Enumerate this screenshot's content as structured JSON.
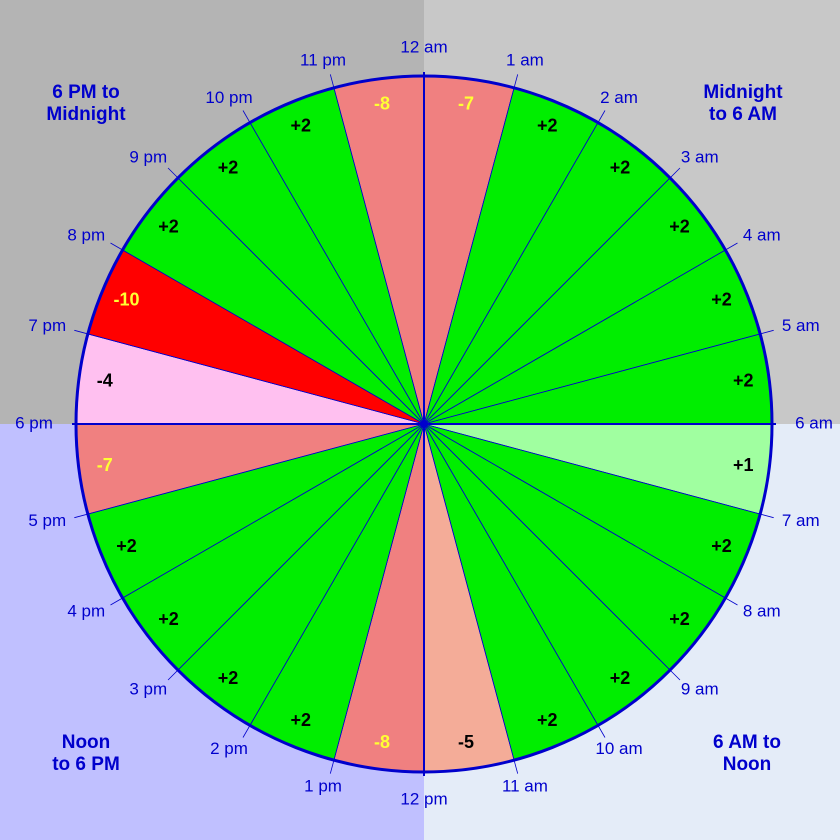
{
  "quadrants": [
    {
      "lines": [
        "Midnight",
        "to 6 AM"
      ],
      "color": "#c8c8c8"
    },
    {
      "lines": [
        "6 AM to",
        "Noon"
      ],
      "color": "#e4ecf8"
    },
    {
      "lines": [
        "Noon",
        "to 6 PM"
      ],
      "color": "#c0c0ff"
    },
    {
      "lines": [
        "6 PM to",
        "Midnight"
      ],
      "color": "#b4b4b4"
    }
  ],
  "hours": [
    "12 am",
    "1 am",
    "2 am",
    "3 am",
    "4 am",
    "5 am",
    "6 am",
    "7 am",
    "8 am",
    "9 am",
    "10 am",
    "11 am",
    "12 pm",
    "1 pm",
    "2 pm",
    "3 pm",
    "4 pm",
    "5 pm",
    "6 pm",
    "7 pm",
    "8 pm",
    "9 pm",
    "10 pm",
    "11 pm"
  ],
  "segments": [
    {
      "label": "-7",
      "color": "#f08080",
      "text_color": "#ffff33"
    },
    {
      "label": "+2",
      "color": "#00ee00",
      "text_color": "#000000"
    },
    {
      "label": "+2",
      "color": "#00ee00",
      "text_color": "#000000"
    },
    {
      "label": "+2",
      "color": "#00ee00",
      "text_color": "#000000"
    },
    {
      "label": "+2",
      "color": "#00ee00",
      "text_color": "#000000"
    },
    {
      "label": "+2",
      "color": "#00ee00",
      "text_color": "#000000"
    },
    {
      "label": "+1",
      "color": "#a0ffa0",
      "text_color": "#000000"
    },
    {
      "label": "+2",
      "color": "#00ee00",
      "text_color": "#000000"
    },
    {
      "label": "+2",
      "color": "#00ee00",
      "text_color": "#000000"
    },
    {
      "label": "+2",
      "color": "#00ee00",
      "text_color": "#000000"
    },
    {
      "label": "+2",
      "color": "#00ee00",
      "text_color": "#000000"
    },
    {
      "label": "-5",
      "color": "#f4ac98",
      "text_color": "#000000"
    },
    {
      "label": "-8",
      "color": "#f08080",
      "text_color": "#ffff33"
    },
    {
      "label": "+2",
      "color": "#00ee00",
      "text_color": "#000000"
    },
    {
      "label": "+2",
      "color": "#00ee00",
      "text_color": "#000000"
    },
    {
      "label": "+2",
      "color": "#00ee00",
      "text_color": "#000000"
    },
    {
      "label": "+2",
      "color": "#00ee00",
      "text_color": "#000000"
    },
    {
      "label": "-7",
      "color": "#f08080",
      "text_color": "#ffff33"
    },
    {
      "label": "-4",
      "color": "#ffc0f0",
      "text_color": "#000000"
    },
    {
      "label": "-10",
      "color": "#ff0000",
      "text_color": "#ffff33"
    },
    {
      "label": "+2",
      "color": "#00ee00",
      "text_color": "#000000"
    },
    {
      "label": "+2",
      "color": "#00ee00",
      "text_color": "#000000"
    },
    {
      "label": "+2",
      "color": "#00ee00",
      "text_color": "#000000"
    },
    {
      "label": "-8",
      "color": "#f08080",
      "text_color": "#ffff33"
    }
  ]
}
